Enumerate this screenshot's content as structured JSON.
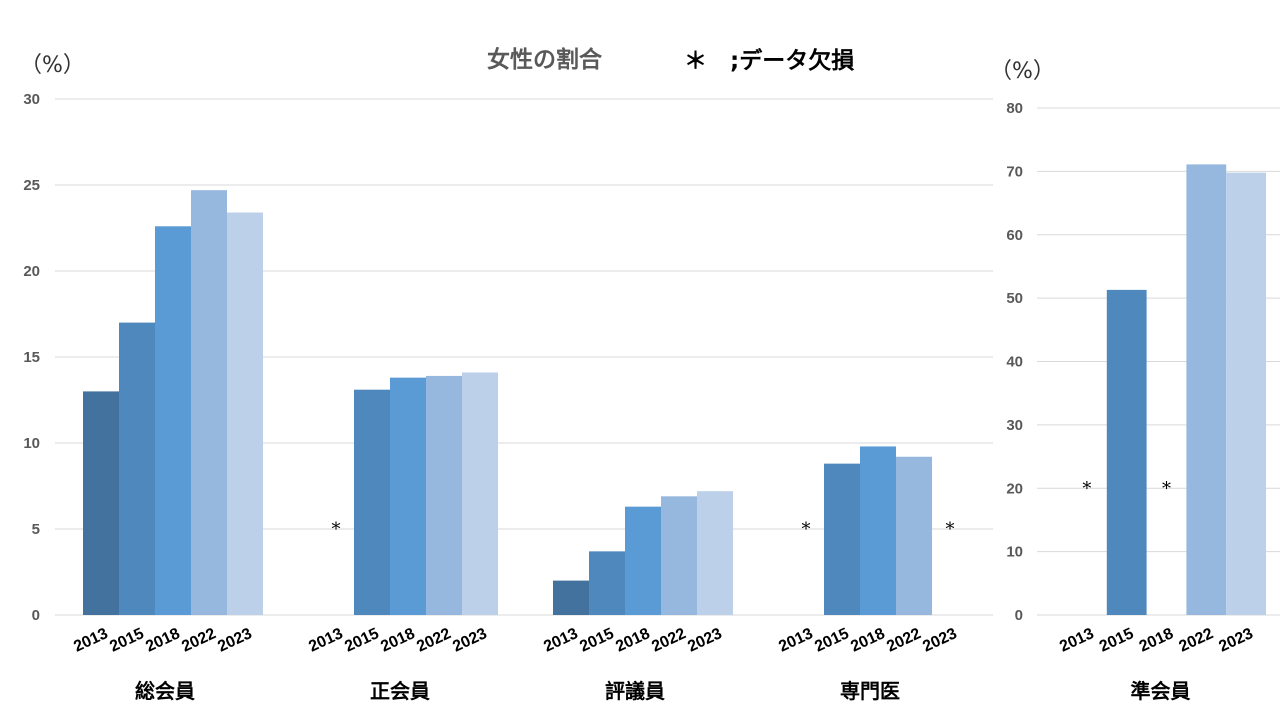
{
  "chart_data": [
    {
      "type": "bar",
      "title": "女性の割合",
      "note": "＊　;データ欠損",
      "ylabel": "（%）",
      "ylim": [
        0,
        30
      ],
      "yticks": [
        0,
        5,
        10,
        15,
        20,
        25,
        30
      ],
      "grid": true,
      "categories": [
        "総会員",
        "正会員",
        "評議員",
        "専門医"
      ],
      "years": [
        "2013",
        "2015",
        "2018",
        "2022",
        "2023"
      ],
      "missing_marker": "*",
      "series": [
        {
          "values": [
            13.0,
            null,
            2.0,
            null
          ],
          "color": "#44729f"
        },
        {
          "values": [
            17.0,
            13.1,
            3.7,
            8.8
          ],
          "color": "#4e88bd"
        },
        {
          "values": [
            22.6,
            13.8,
            6.3,
            9.8
          ],
          "color": "#5b9bd5"
        },
        {
          "values": [
            24.7,
            13.9,
            6.9,
            9.2
          ],
          "color": "#97b8de"
        },
        {
          "values": [
            23.4,
            14.1,
            7.2,
            null
          ],
          "color": "#bdd0ea"
        }
      ]
    },
    {
      "type": "bar",
      "ylabel": "（%）",
      "ylim": [
        0,
        80
      ],
      "yticks": [
        0,
        10,
        20,
        30,
        40,
        50,
        60,
        70,
        80
      ],
      "grid": true,
      "categories": [
        "準会員"
      ],
      "years": [
        "2013",
        "2015",
        "2018",
        "2022",
        "2023"
      ],
      "missing_marker": "*",
      "series": [
        {
          "values": [
            null
          ],
          "color": "#44729f"
        },
        {
          "values": [
            51.3
          ],
          "color": "#4e88bd"
        },
        {
          "values": [
            null
          ],
          "color": "#5b9bd5"
        },
        {
          "values": [
            71.1
          ],
          "color": "#97b8de"
        },
        {
          "values": [
            69.8
          ],
          "color": "#bdd0ea"
        }
      ]
    }
  ]
}
